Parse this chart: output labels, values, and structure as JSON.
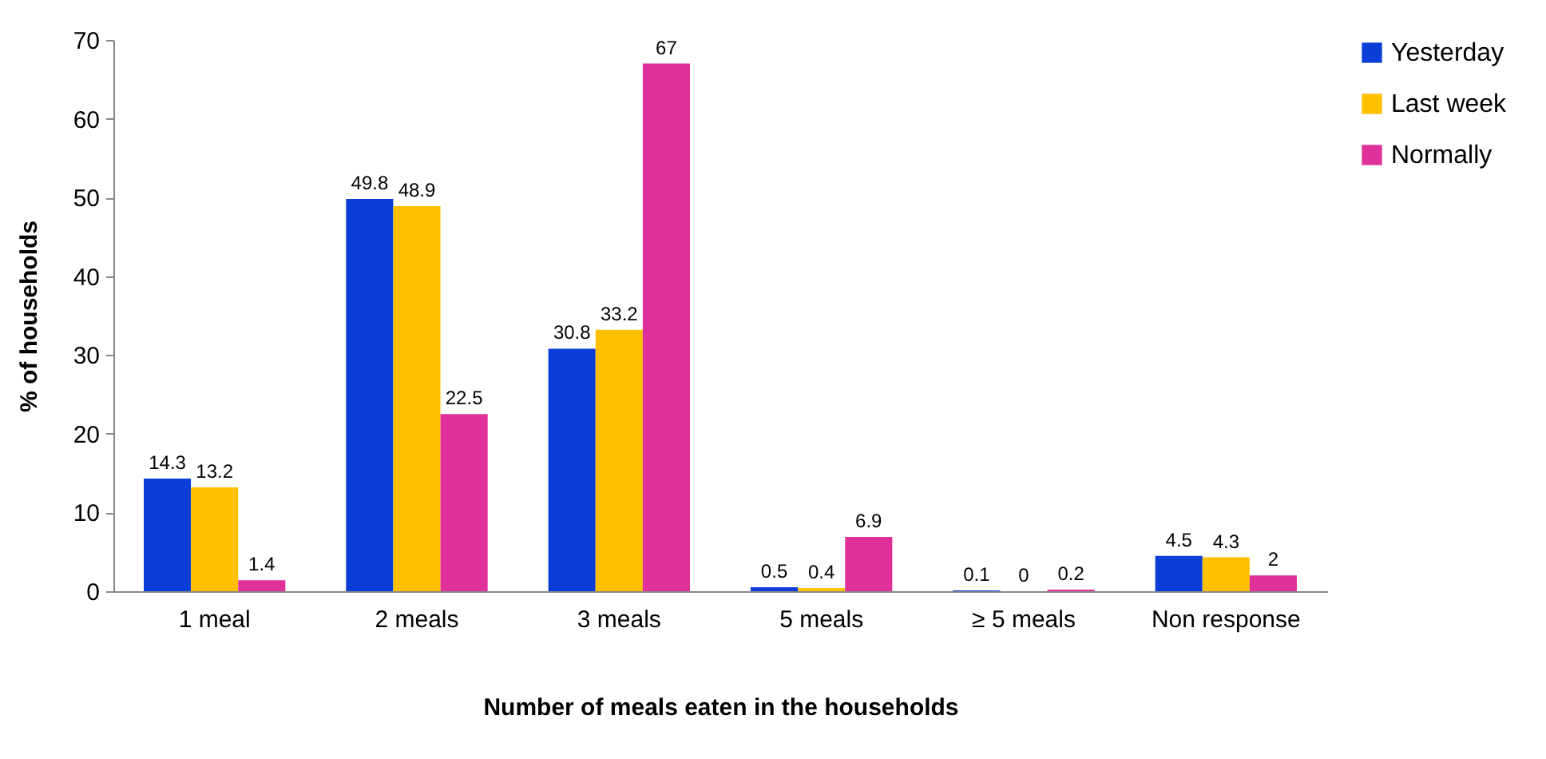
{
  "chart_data": {
    "type": "bar",
    "xlabel": "Number of meals eaten in the households",
    "ylabel": "% of households",
    "categories": [
      "1 meal",
      "2 meals",
      "3 meals",
      "5 meals",
      "≥ 5 meals",
      "Non response"
    ],
    "series": [
      {
        "name": "Yesterday",
        "color": "#0a3ed6",
        "values": [
          14.3,
          49.8,
          30.8,
          0.5,
          0.1,
          4.5
        ]
      },
      {
        "name": "Last week",
        "color": "#ffc000",
        "values": [
          13.2,
          48.9,
          33.2,
          0.4,
          0,
          4.3
        ]
      },
      {
        "name": "Normally",
        "color": "#e0309a",
        "values": [
          1.4,
          22.5,
          67,
          6.9,
          0.2,
          2
        ]
      }
    ],
    "ylim": [
      0,
      70
    ],
    "yticks": [
      0,
      10,
      20,
      30,
      40,
      50,
      60,
      70
    ],
    "data_labels": true,
    "legend": "right",
    "grid": false
  }
}
